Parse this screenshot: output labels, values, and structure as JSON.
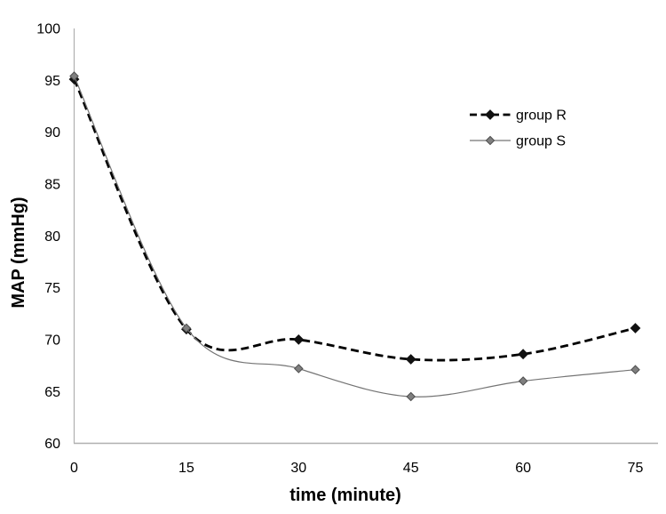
{
  "chart_data": {
    "type": "line",
    "title": "",
    "xlabel": "time (minute)",
    "ylabel": "MAP (mmHg)",
    "x": [
      0,
      15,
      30,
      45,
      60,
      75
    ],
    "x_tick_labels": [
      "0",
      "15",
      "30",
      "45",
      "60",
      "75"
    ],
    "y_tick_labels": [
      "100",
      "95",
      "90",
      "85",
      "80",
      "75",
      "70",
      "65",
      "60"
    ],
    "y_ticks": [
      100,
      95,
      90,
      85,
      80,
      75,
      70,
      65,
      60
    ],
    "ylim": [
      60,
      100
    ],
    "xlim": [
      0,
      78
    ],
    "grid": false,
    "legend_position": "inside-upper-right",
    "series": [
      {
        "name": "group R",
        "values": [
          95.1,
          71.0,
          70.0,
          68.1,
          68.6,
          71.1
        ],
        "color": "#000000",
        "line_style": "dashed",
        "marker": "diamond",
        "marker_color": "#111111",
        "marker_outline": "#111111",
        "smooth": true
      },
      {
        "name": "group S",
        "values": [
          95.4,
          71.1,
          67.2,
          64.5,
          66.0,
          67.1
        ],
        "color": "#747474",
        "line_style": "solid",
        "marker": "diamond",
        "marker_color": "#7f7f7f",
        "marker_outline": "#4d4d4d",
        "smooth": true
      }
    ],
    "axis_color": "#b0b0b0",
    "text_color": "#000000",
    "background": "#ffffff"
  }
}
